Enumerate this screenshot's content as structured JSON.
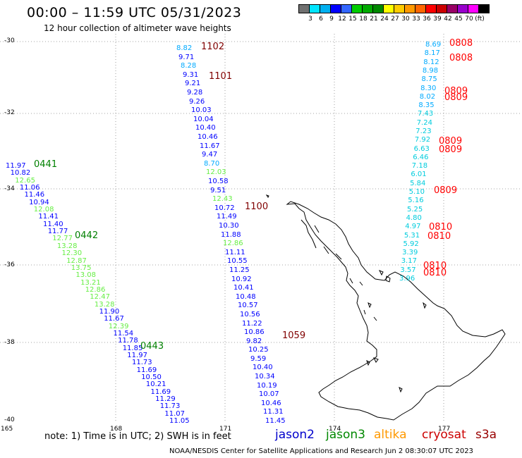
{
  "header": {
    "title": "00:00 – 11:59 UTC 05/31/2023",
    "subtitle": "12 hour collection of altimeter wave heights"
  },
  "colorbar": {
    "colors": [
      "#707070",
      "#00e5ff",
      "#00b0f0",
      "#0000ff",
      "#3366ff",
      "#00cc00",
      "#00aa00",
      "#008800",
      "#ffff00",
      "#ffcc00",
      "#ff9900",
      "#ff6600",
      "#ff0000",
      "#cc0000",
      "#990066",
      "#9900cc",
      "#ff00ff",
      "#000000"
    ],
    "labels": [
      "3",
      "6",
      "9",
      "12",
      "15",
      "18",
      "21",
      "24",
      "27",
      "30",
      "33",
      "36",
      "39",
      "42",
      "45",
      "70",
      "(ft)"
    ]
  },
  "axes": {
    "lat_labels": [
      "-30",
      "-32",
      "-34",
      "-36",
      "-38",
      "-40"
    ],
    "lon_labels": [
      "165",
      "168",
      "171",
      "174",
      "177"
    ]
  },
  "track_labels": [
    {
      "text": "1102",
      "color": "#800000"
    },
    {
      "text": "1101",
      "color": "#800000"
    },
    {
      "text": "1100",
      "color": "#800000"
    },
    {
      "text": "1059",
      "color": "#800000"
    },
    {
      "text": "0441",
      "color": "#008000"
    },
    {
      "text": "0442",
      "color": "#008000"
    },
    {
      "text": "0443",
      "color": "#008000"
    },
    {
      "text": "0808",
      "color": "#ff0000"
    },
    {
      "text": "0808",
      "color": "#ff0000"
    },
    {
      "text": "0809",
      "color": "#ff0000"
    },
    {
      "text": "0809",
      "color": "#ff0000"
    },
    {
      "text": "0809",
      "color": "#ff0000"
    },
    {
      "text": "0809",
      "color": "#ff0000"
    },
    {
      "text": "0809",
      "color": "#ff0000"
    },
    {
      "text": "0810",
      "color": "#ff0000"
    },
    {
      "text": "0810",
      "color": "#ff0000"
    },
    {
      "text": "0810",
      "color": "#ff0000"
    },
    {
      "text": "0810",
      "color": "#ff0000"
    }
  ],
  "tracks": [
    {
      "name": "track-1100",
      "points": [
        {
          "v": "8.82",
          "c": "#00aaff"
        },
        {
          "v": "9.71",
          "c": "#0000ff"
        },
        {
          "v": "8.28",
          "c": "#00aaff"
        },
        {
          "v": "9.31",
          "c": "#0000ff"
        },
        {
          "v": "9.21",
          "c": "#0000ff"
        },
        {
          "v": "9.28",
          "c": "#0000ff"
        },
        {
          "v": "9.26",
          "c": "#0000ff"
        },
        {
          "v": "10.03",
          "c": "#0000ff"
        },
        {
          "v": "10.04",
          "c": "#0000ff"
        },
        {
          "v": "10.40",
          "c": "#0000ff"
        },
        {
          "v": "10.46",
          "c": "#0000ff"
        },
        {
          "v": "11.67",
          "c": "#0000ff"
        },
        {
          "v": "9.47",
          "c": "#0000ff"
        },
        {
          "v": "8.70",
          "c": "#00aaff"
        },
        {
          "v": "12.03",
          "c": "#66ee44"
        },
        {
          "v": "10.58",
          "c": "#0000ff"
        },
        {
          "v": "9.51",
          "c": "#0000ff"
        },
        {
          "v": "12.43",
          "c": "#66ee44"
        },
        {
          "v": "10.72",
          "c": "#0000ff"
        },
        {
          "v": "11.49",
          "c": "#0000ff"
        },
        {
          "v": "10.30",
          "c": "#0000ff"
        },
        {
          "v": "11.88",
          "c": "#0000ff"
        },
        {
          "v": "12.86",
          "c": "#66ee44"
        },
        {
          "v": "11.11",
          "c": "#0000ff"
        },
        {
          "v": "10.55",
          "c": "#0000ff"
        },
        {
          "v": "11.25",
          "c": "#0000ff"
        },
        {
          "v": "10.92",
          "c": "#0000ff"
        },
        {
          "v": "10.41",
          "c": "#0000ff"
        },
        {
          "v": "10.48",
          "c": "#0000ff"
        },
        {
          "v": "10.57",
          "c": "#0000ff"
        },
        {
          "v": "10.56",
          "c": "#0000ff"
        },
        {
          "v": "11.22",
          "c": "#0000ff"
        },
        {
          "v": "10.86",
          "c": "#0000ff"
        },
        {
          "v": "9.82",
          "c": "#0000ff"
        },
        {
          "v": "10.25",
          "c": "#0000ff"
        },
        {
          "v": "9.59",
          "c": "#0000ff"
        },
        {
          "v": "10.40",
          "c": "#0000ff"
        },
        {
          "v": "10.34",
          "c": "#0000ff"
        },
        {
          "v": "10.19",
          "c": "#0000ff"
        },
        {
          "v": "10.07",
          "c": "#0000ff"
        },
        {
          "v": "10.46",
          "c": "#0000ff"
        },
        {
          "v": "11.31",
          "c": "#0000ff"
        },
        {
          "v": "11.45",
          "c": "#0000ff"
        }
      ]
    },
    {
      "name": "track-0442",
      "points": [
        {
          "v": "11.97",
          "c": "#0000ff"
        },
        {
          "v": "10.82",
          "c": "#0000ff"
        },
        {
          "v": "12.65",
          "c": "#66ee44"
        },
        {
          "v": "11.06",
          "c": "#0000ff"
        },
        {
          "v": "11.46",
          "c": "#0000ff"
        },
        {
          "v": "10.94",
          "c": "#0000ff"
        },
        {
          "v": "12.08",
          "c": "#66ee44"
        },
        {
          "v": "11.41",
          "c": "#0000ff"
        },
        {
          "v": "11.40",
          "c": "#0000ff"
        },
        {
          "v": "11.77",
          "c": "#0000ff"
        },
        {
          "v": "12.77",
          "c": "#66ee44"
        },
        {
          "v": "13.28",
          "c": "#66ee44"
        },
        {
          "v": "12.30",
          "c": "#66ee44"
        },
        {
          "v": "12.87",
          "c": "#66ee44"
        },
        {
          "v": "13.75",
          "c": "#66ee44"
        },
        {
          "v": "13.08",
          "c": "#66ee44"
        },
        {
          "v": "13.21",
          "c": "#66ee44"
        },
        {
          "v": "12.86",
          "c": "#66ee44"
        },
        {
          "v": "12.47",
          "c": "#66ee44"
        },
        {
          "v": "13.28",
          "c": "#66ee44"
        },
        {
          "v": "11.90",
          "c": "#0000ff"
        },
        {
          "v": "11.67",
          "c": "#0000ff"
        },
        {
          "v": "12.39",
          "c": "#66ee44"
        },
        {
          "v": "11.54",
          "c": "#0000ff"
        },
        {
          "v": "11.78",
          "c": "#0000ff"
        },
        {
          "v": "11.85",
          "c": "#0000ff"
        },
        {
          "v": "11.97",
          "c": "#0000ff"
        },
        {
          "v": "11.73",
          "c": "#0000ff"
        },
        {
          "v": "11.69",
          "c": "#0000ff"
        },
        {
          "v": "10.50",
          "c": "#0000ff"
        },
        {
          "v": "10.21",
          "c": "#0000ff"
        },
        {
          "v": "11.69",
          "c": "#0000ff"
        },
        {
          "v": "11.29",
          "c": "#0000ff"
        },
        {
          "v": "11.73",
          "c": "#0000ff"
        },
        {
          "v": "11.07",
          "c": "#0000ff"
        },
        {
          "v": "11.05",
          "c": "#0000ff"
        }
      ]
    },
    {
      "name": "track-0809",
      "points": [
        {
          "v": "8.69",
          "c": "#00aaff"
        },
        {
          "v": "8.17",
          "c": "#00aaff"
        },
        {
          "v": "8.12",
          "c": "#00aaff"
        },
        {
          "v": "8.98",
          "c": "#00aaff"
        },
        {
          "v": "8.75",
          "c": "#00aaff"
        },
        {
          "v": "8.30",
          "c": "#00aaff"
        },
        {
          "v": "8.02",
          "c": "#00aaff"
        },
        {
          "v": "8.35",
          "c": "#00aaff"
        },
        {
          "v": "7.43",
          "c": "#00ccdd"
        },
        {
          "v": "7.24",
          "c": "#00ccdd"
        },
        {
          "v": "7.23",
          "c": "#00ccdd"
        },
        {
          "v": "7.92",
          "c": "#00ccdd"
        },
        {
          "v": "6.63",
          "c": "#00ccdd"
        },
        {
          "v": "6.46",
          "c": "#00ccdd"
        },
        {
          "v": "7.18",
          "c": "#00ccdd"
        },
        {
          "v": "6.01",
          "c": "#00ccdd"
        },
        {
          "v": "5.84",
          "c": "#00ccdd"
        },
        {
          "v": "5.10",
          "c": "#00ccdd"
        },
        {
          "v": "5.16",
          "c": "#00ccdd"
        },
        {
          "v": "5.25",
          "c": "#00ccdd"
        },
        {
          "v": "4.80",
          "c": "#00ccdd"
        },
        {
          "v": "4.97",
          "c": "#00ccdd"
        },
        {
          "v": "5.31",
          "c": "#00ccdd"
        },
        {
          "v": "5.92",
          "c": "#00ccdd"
        },
        {
          "v": "3.39",
          "c": "#00ccdd"
        },
        {
          "v": "3.17",
          "c": "#00ccdd"
        },
        {
          "v": "3.57",
          "c": "#00ccdd"
        },
        {
          "v": "3.96",
          "c": "#00ccdd"
        }
      ]
    }
  ],
  "note": "note:  1) Time is in UTC; 2) SWH is in feet",
  "legend": [
    {
      "text": "jason2",
      "color": "#0000cc"
    },
    {
      "text": "jason3",
      "color": "#008800"
    },
    {
      "text": "altika",
      "color": "#ff9900"
    },
    {
      "text": "cryosat",
      "color": "#cc0000"
    },
    {
      "text": "s3a",
      "color": "#990000"
    }
  ],
  "footer": "NOAA/NESDIS Center for Satellite Applications and Research    Jun  2 08:30:07 UTC 2023"
}
